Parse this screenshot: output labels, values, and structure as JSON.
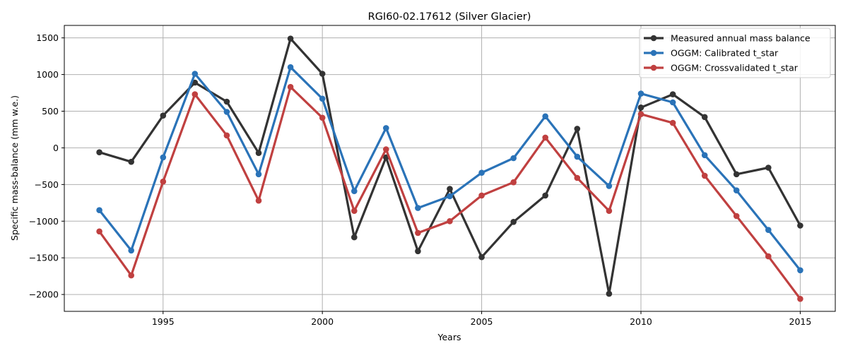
{
  "chart_data": {
    "type": "line",
    "title": "RGI60-02.17612 (Silver Glacier)",
    "xlabel": "Years",
    "ylabel": "Specific mass-balance (mm w.e.)",
    "xlim": [
      1991.9,
      2016.1
    ],
    "ylim": [
      -2230,
      1670
    ],
    "xticks": [
      1995,
      2000,
      2005,
      2010,
      2015
    ],
    "yticks": [
      -2000,
      -1500,
      -1000,
      -500,
      0,
      500,
      1000,
      1500
    ],
    "xtick_labels": [
      "1995",
      "2000",
      "2005",
      "2010",
      "2015"
    ],
    "ytick_labels": [
      "−2000",
      "−1500",
      "−1000",
      "−500",
      "0",
      "500",
      "1000",
      "1500"
    ],
    "grid": true,
    "legend_position": "top-right",
    "x": [
      1993,
      1994,
      1995,
      1996,
      1997,
      1998,
      1999,
      2000,
      2001,
      2002,
      2003,
      2004,
      2005,
      2006,
      2007,
      2008,
      2009,
      2010,
      2011,
      2012,
      2013,
      2014,
      2015
    ],
    "series": [
      {
        "name": "Measured annual mass balance",
        "color": "#333333",
        "values": [
          -60,
          -190,
          440,
          890,
          630,
          -70,
          1490,
          1010,
          -1220,
          -130,
          -1410,
          -560,
          -1490,
          -1010,
          -650,
          260,
          -1990,
          550,
          730,
          420,
          -360,
          -270,
          -1060
        ]
      },
      {
        "name": "OGGM: Calibrated t_star",
        "color": "#2a73b8",
        "values": [
          -850,
          -1400,
          -130,
          1010,
          490,
          -360,
          1100,
          670,
          -590,
          270,
          -820,
          -660,
          -340,
          -140,
          430,
          -120,
          -520,
          740,
          620,
          -100,
          -580,
          -1120,
          -1670
        ]
      },
      {
        "name": "OGGM: Crossvalidated t_star",
        "color": "#c04040",
        "values": [
          -1140,
          -1740,
          -460,
          730,
          170,
          -720,
          830,
          410,
          -860,
          -20,
          -1160,
          -1000,
          -650,
          -470,
          140,
          -410,
          -860,
          460,
          340,
          -380,
          -930,
          -1480,
          -2060
        ]
      }
    ]
  }
}
